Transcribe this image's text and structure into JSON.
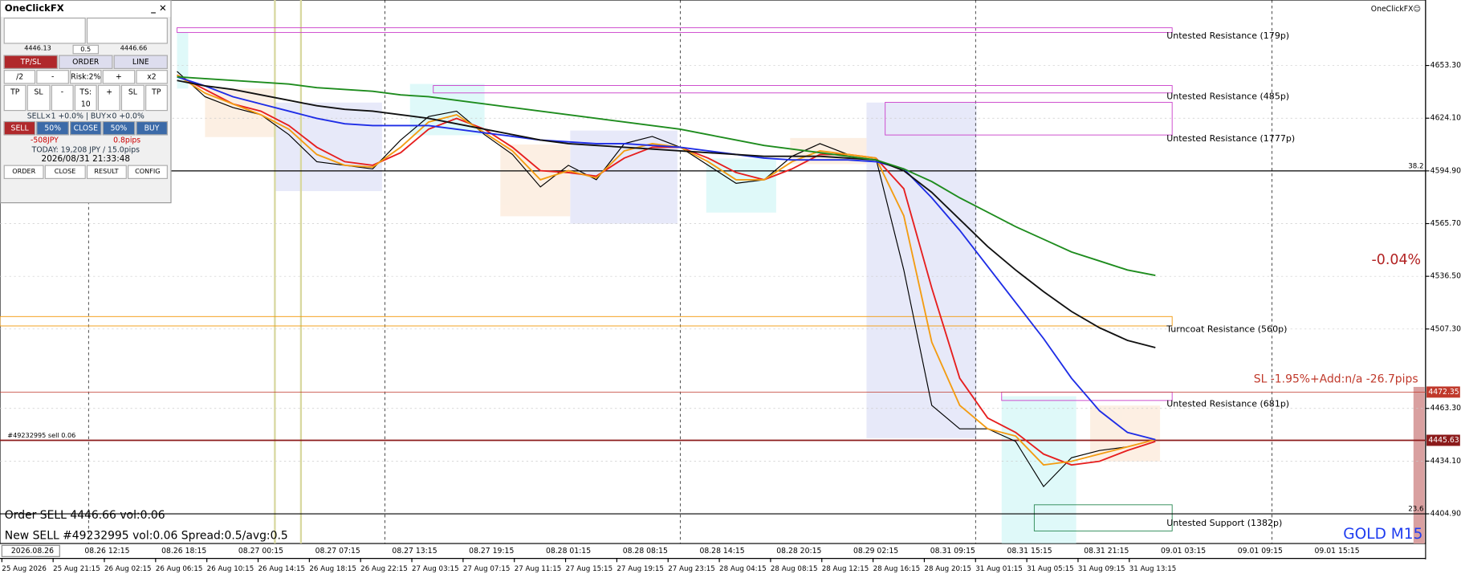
{
  "app": {
    "title": "OneClickFX",
    "sell": "SELL",
    "buy": "BUY",
    "lot": 0.5,
    "bid": 4446.13,
    "ask": 4446.66,
    "tabs": [
      "TP/SL",
      "ORDER",
      "LINE"
    ],
    "risk_row": [
      "/2",
      "-",
      "Risk:2%",
      "+",
      "x2"
    ],
    "ts_row": [
      "TP",
      "SL",
      "-",
      "TS: 10",
      "+",
      "SL",
      "TP"
    ],
    "positions": "SELL×1 +0.0% | BUY×0 +0.0%",
    "close_row": [
      "SELL",
      "50%",
      "CLOSE",
      "50%",
      "BUY"
    ],
    "pl": "-508JPY",
    "pips": "0.8pips",
    "today": "TODAY: 19,208 JPY / 15.0pips",
    "clock": "2026/08/31  21:33:48",
    "footer": [
      "ORDER",
      "CLOSE",
      "RESULT",
      "CONFIG"
    ]
  },
  "chart_data": {
    "type": "line",
    "symbol": "GOLD M15",
    "brand": "OneClickFX☺",
    "change": "-0.04%",
    "sl_text": "SL -1.95%+Add:n/a -26.7pips",
    "date_marker": "2026.08.26",
    "messages": [
      "Order SELL 4446.66 vol:0.06",
      "New SELL #49232995 vol:0.06 Spread:0.5/avg:0.5"
    ],
    "ylim": [
      4390,
      4687
    ],
    "yticks": [
      {
        "value": 4653.3,
        "label": "4653.30"
      },
      {
        "value": 4624.1,
        "label": "4624.10"
      },
      {
        "value": 4594.9,
        "label": "4594.90"
      },
      {
        "value": 4565.7,
        "label": "4565.70"
      },
      {
        "value": 4536.5,
        "label": "4536.50"
      },
      {
        "value": 4507.3,
        "label": "4507.30"
      },
      {
        "value": 4463.3,
        "label": "4463.30"
      },
      {
        "value": 4434.1,
        "label": "4434.10"
      },
      {
        "value": 4404.9,
        "label": "4404.90"
      }
    ],
    "bar_times": [
      "08.26 12:15",
      "08.26 18:15",
      "08.27 00:15",
      "08.27 07:15",
      "08.27 13:15",
      "08.27 19:15",
      "08.28 01:15",
      "08.28 08:15",
      "08.28 14:15",
      "08.28 20:15",
      "08.29 02:15",
      "08.31 09:15",
      "08.31 15:15",
      "08.31 21:15",
      "09.01 03:15",
      "09.01 09:15",
      "09.01 15:15"
    ],
    "x_labels": [
      "25 Aug 2026",
      "25 Aug 21:15",
      "26 Aug 02:15",
      "26 Aug 06:15",
      "26 Aug 10:15",
      "26 Aug 14:15",
      "26 Aug 18:15",
      "26 Aug 22:15",
      "27 Aug 03:15",
      "27 Aug 07:15",
      "27 Aug 11:15",
      "27 Aug 15:15",
      "27 Aug 19:15",
      "27 Aug 23:15",
      "28 Aug 04:15",
      "28 Aug 08:15",
      "28 Aug 12:15",
      "28 Aug 16:15",
      "28 Aug 20:15",
      "31 Aug 01:15",
      "31 Aug 05:15",
      "31 Aug 09:15",
      "31 Aug 13:15"
    ],
    "series": [
      {
        "color": "#000000",
        "values": [
          4650,
          4636,
          4630,
          4626,
          4615,
          4600,
          4598,
          4596,
          4612,
          4625,
          4628,
          4615,
          4604,
          4586,
          4598,
          4590,
          4610,
          4614,
          4608,
          4598,
          4588,
          4590,
          4603,
          4610,
          4604,
          4602,
          4540,
          4465,
          4452,
          4452,
          4445,
          4420,
          4436,
          4440,
          4442,
          4446
        ]
      },
      {
        "color": "#e61e1e",
        "values": [
          4648,
          4640,
          4632,
          4628,
          4620,
          4608,
          4600,
          4598,
          4605,
          4618,
          4624,
          4618,
          4608,
          4595,
          4594,
          4592,
          4602,
          4608,
          4608,
          4602,
          4594,
          4590,
          4596,
          4604,
          4604,
          4602,
          4585,
          4530,
          4480,
          4458,
          4450,
          4438,
          4432,
          4434,
          4440,
          4445
        ]
      },
      {
        "color": "#f39c12",
        "values": [
          4648,
          4638,
          4632,
          4626,
          4618,
          4604,
          4598,
          4597,
          4608,
          4622,
          4626,
          4616,
          4606,
          4590,
          4595,
          4591,
          4606,
          4610,
          4608,
          4600,
          4590,
          4590,
          4600,
          4606,
          4604,
          4602,
          4570,
          4500,
          4465,
          4452,
          4448,
          4432,
          4434,
          4438,
          4442,
          4446
        ]
      },
      {
        "color": "#1e2de6",
        "values": [
          4647,
          4642,
          4636,
          4632,
          4628,
          4624,
          4621,
          4620,
          4620,
          4620,
          4618,
          4616,
          4614,
          4612,
          4611,
          4610,
          4610,
          4609,
          4608,
          4606,
          4604,
          4602,
          4601,
          4601,
          4601,
          4600,
          4596,
          4580,
          4562,
          4542,
          4522,
          4502,
          4480,
          4462,
          4450,
          4446
        ]
      },
      {
        "color": "#111111",
        "values": [
          4645,
          4642,
          4640,
          4637,
          4634,
          4631,
          4629,
          4628,
          4626,
          4624,
          4621,
          4618,
          4615,
          4612,
          4610,
          4609,
          4608,
          4607,
          4606,
          4605,
          4604,
          4603,
          4603,
          4603,
          4602,
          4601,
          4595,
          4583,
          4568,
          4553,
          4540,
          4528,
          4517,
          4508,
          4501,
          4497
        ]
      },
      {
        "color": "#1e8c1e",
        "values": [
          4647,
          4646,
          4645,
          4644,
          4643,
          4641,
          4640,
          4639,
          4637,
          4636,
          4634,
          4632,
          4630,
          4628,
          4626,
          4624,
          4622,
          4620,
          4618,
          4615,
          4612,
          4609,
          4607,
          4605,
          4603,
          4601,
          4596,
          4589,
          4580,
          4572,
          4564,
          4557,
          4550,
          4545,
          4540,
          4537
        ]
      }
    ],
    "zones": [
      {
        "label": "Untested Resistance (179p)",
        "low": 4671.6,
        "high": 4674.2,
        "color": "#cc44cc"
      },
      {
        "label": "Untested Resistance (485p)",
        "low": 4638.1,
        "high": 4642.2,
        "color": "#cc44cc"
      },
      {
        "label": "Untested Resistance (1777p)",
        "low": 4614.8,
        "high": 4632.9,
        "color": "#cc44cc"
      },
      {
        "label": "Turncoat Resistance (560p)",
        "low": 4509.0,
        "high": 4514.2,
        "color": "#f39c12"
      },
      {
        "label": "Untested Resistance (681p)",
        "low": 4467.7,
        "high": 4472.35,
        "color": "#cc44cc"
      },
      {
        "label": "Untested Support (1382p)",
        "low": 4395.4,
        "high": 4409.9,
        "color": "#2e8b57"
      }
    ],
    "levels": [
      {
        "value": 4594.9,
        "label": "38.2"
      },
      {
        "value": 4404.9,
        "label": "23.6"
      }
    ],
    "order_line": {
      "label": "#49232995 sell 0.06",
      "price": 4445.63,
      "color": "#8b1a1a"
    },
    "sl_line": {
      "price": 4472.35,
      "color": "#c0392b"
    }
  }
}
